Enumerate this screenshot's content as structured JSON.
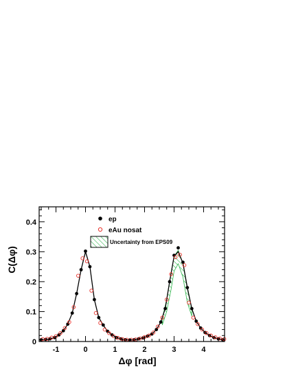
{
  "chart_data": {
    "type": "scatter",
    "xlabel": "Δφ [rad]",
    "ylabel": "C(Δφ)",
    "xlim": [
      -1.57,
      4.71
    ],
    "ylim": [
      0,
      0.45
    ],
    "x_ticks": [
      "-1",
      "0",
      "1",
      "2",
      "3",
      "4"
    ],
    "x_tick_values": [
      -1,
      0,
      1,
      2,
      3,
      4
    ],
    "y_ticks": [
      "0",
      "0.1",
      "0.2",
      "0.3",
      "0.4"
    ],
    "y_tick_values": [
      0,
      0.1,
      0.2,
      0.3,
      0.4
    ],
    "legend": [
      {
        "label": "ep",
        "marker": "filled-circle"
      },
      {
        "label": "eAu nosat",
        "marker": "open-circle"
      },
      {
        "label": "Uncertainty from EPS09",
        "marker": "hatched-box"
      }
    ],
    "legend_position": "top-center",
    "series": [
      {
        "name": "ep",
        "color": "#000000",
        "marker": "filled-circle",
        "x": [
          -1.5,
          -1.35,
          -1.2,
          -1.05,
          -0.9,
          -0.75,
          -0.6,
          -0.45,
          -0.3,
          -0.15,
          0.0,
          0.15,
          0.3,
          0.45,
          0.6,
          0.75,
          0.9,
          1.05,
          1.2,
          1.35,
          1.5,
          1.65,
          1.8,
          1.95,
          2.1,
          2.25,
          2.4,
          2.55,
          2.7,
          2.85,
          3.0,
          3.14,
          3.3,
          3.45,
          3.6,
          3.75,
          3.9,
          4.05,
          4.2,
          4.35,
          4.5,
          4.65
        ],
        "y": [
          0.006,
          0.007,
          0.009,
          0.013,
          0.022,
          0.036,
          0.058,
          0.095,
          0.16,
          0.24,
          0.302,
          0.25,
          0.14,
          0.08,
          0.055,
          0.034,
          0.022,
          0.013,
          0.009,
          0.006,
          0.005,
          0.006,
          0.009,
          0.012,
          0.018,
          0.025,
          0.04,
          0.065,
          0.11,
          0.2,
          0.288,
          0.313,
          0.265,
          0.18,
          0.11,
          0.068,
          0.045,
          0.03,
          0.02,
          0.013,
          0.009,
          0.006
        ]
      },
      {
        "name": "eAu nosat",
        "color": "#e8312a",
        "marker": "open-circle",
        "x": [
          -1.45,
          -1.3,
          -1.15,
          -1.0,
          -0.85,
          -0.7,
          -0.55,
          -0.4,
          -0.25,
          -0.1,
          0.05,
          0.2,
          0.35,
          0.5,
          0.65,
          0.8,
          0.95,
          1.1,
          1.25,
          1.4,
          1.55,
          1.7,
          1.85,
          2.0,
          2.15,
          2.3,
          2.45,
          2.6,
          2.75,
          2.9,
          3.05,
          3.2,
          3.35,
          3.5,
          3.65,
          3.8,
          3.95,
          4.1,
          4.25,
          4.4,
          4.55,
          4.7
        ],
        "y": [
          0.008,
          0.009,
          0.013,
          0.018,
          0.028,
          0.045,
          0.065,
          0.115,
          0.22,
          0.278,
          0.268,
          0.17,
          0.095,
          0.062,
          0.04,
          0.028,
          0.018,
          0.012,
          0.008,
          0.006,
          0.006,
          0.007,
          0.01,
          0.015,
          0.02,
          0.03,
          0.05,
          0.08,
          0.14,
          0.225,
          0.282,
          0.29,
          0.255,
          0.13,
          0.08,
          0.058,
          0.04,
          0.028,
          0.02,
          0.014,
          0.01,
          0.008
        ]
      }
    ],
    "band": {
      "name": "Uncertainty from EPS09",
      "color": "#2db34a",
      "x": [
        2.6,
        2.75,
        2.9,
        3.0,
        3.14,
        3.3,
        3.45,
        3.6
      ],
      "y_low": [
        0.055,
        0.1,
        0.175,
        0.235,
        0.26,
        0.215,
        0.13,
        0.085
      ],
      "y_high": [
        0.078,
        0.14,
        0.23,
        0.285,
        0.305,
        0.26,
        0.175,
        0.11
      ]
    },
    "line": {
      "x": [
        -1.57,
        -1.35,
        -1.2,
        -1.05,
        -0.9,
        -0.75,
        -0.6,
        -0.45,
        -0.3,
        -0.15,
        0.0,
        0.15,
        0.3,
        0.45,
        0.6,
        0.75,
        0.9,
        1.05,
        1.2,
        1.35,
        1.5,
        1.65,
        1.8,
        1.95,
        2.1,
        2.25,
        2.4,
        2.55,
        2.7,
        2.85,
        3.0,
        3.14,
        3.3,
        3.45,
        3.6,
        3.75,
        3.9,
        4.05,
        4.2,
        4.35,
        4.5,
        4.71
      ],
      "y": [
        0.006,
        0.007,
        0.009,
        0.013,
        0.022,
        0.036,
        0.058,
        0.095,
        0.16,
        0.24,
        0.3,
        0.25,
        0.14,
        0.08,
        0.055,
        0.034,
        0.022,
        0.013,
        0.009,
        0.006,
        0.005,
        0.006,
        0.009,
        0.012,
        0.018,
        0.025,
        0.04,
        0.065,
        0.11,
        0.2,
        0.285,
        0.3,
        0.262,
        0.18,
        0.11,
        0.068,
        0.045,
        0.03,
        0.02,
        0.013,
        0.009,
        0.006
      ]
    }
  }
}
